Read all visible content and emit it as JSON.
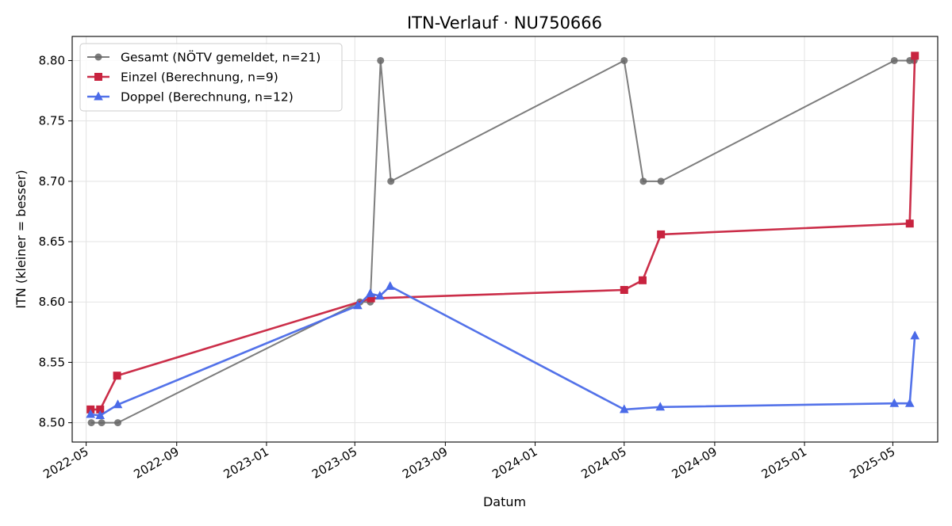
{
  "chart_data": {
    "type": "line",
    "title": "ITN-Verlauf · NU750666",
    "xlabel": "Datum",
    "ylabel": "ITN  (kleiner = besser)",
    "x_type": "date",
    "xlim": [
      "2022-04-12",
      "2025-07-01"
    ],
    "ylim": [
      8.484,
      8.82
    ],
    "x_ticks": [
      "2022-05-01",
      "2022-09-01",
      "2023-01-01",
      "2023-05-01",
      "2023-09-01",
      "2024-01-01",
      "2024-05-01",
      "2024-09-01",
      "2025-01-01",
      "2025-05-01"
    ],
    "x_tick_labels": [
      "2022-05",
      "2022-09",
      "2023-01",
      "2023-05",
      "2023-09",
      "2024-01",
      "2024-05",
      "2024-09",
      "2025-01",
      "2025-05"
    ],
    "y_ticks": [
      8.5,
      8.55,
      8.6,
      8.65,
      8.7,
      8.75,
      8.8
    ],
    "y_tick_labels": [
      "8.50",
      "8.55",
      "8.60",
      "8.65",
      "8.70",
      "8.75",
      "8.80"
    ],
    "grid": true,
    "legend_position": "top-left",
    "series": [
      {
        "name": "Gesamt (NÖTV gemeldet, n=21)",
        "color": "#666666",
        "marker": "circle",
        "points": [
          {
            "x": "2022-05-08",
            "y": 8.5
          },
          {
            "x": "2022-05-22",
            "y": 8.5
          },
          {
            "x": "2022-06-13",
            "y": 8.5
          },
          {
            "x": "2023-05-08",
            "y": 8.6
          },
          {
            "x": "2023-05-22",
            "y": 8.6
          },
          {
            "x": "2023-06-05",
            "y": 8.8
          },
          {
            "x": "2023-06-19",
            "y": 8.7
          },
          {
            "x": "2024-05-01",
            "y": 8.8
          },
          {
            "x": "2024-05-27",
            "y": 8.7
          },
          {
            "x": "2024-06-20",
            "y": 8.7
          },
          {
            "x": "2025-05-03",
            "y": 8.8
          },
          {
            "x": "2025-05-24",
            "y": 8.8
          },
          {
            "x": "2025-05-30",
            "y": 8.8
          }
        ]
      },
      {
        "name": "Einzel (Berechnung, n=9)",
        "color": "#c8233f",
        "marker": "square",
        "points": [
          {
            "x": "2022-05-07",
            "y": 8.511
          },
          {
            "x": "2022-05-20",
            "y": 8.511
          },
          {
            "x": "2022-06-12",
            "y": 8.539
          },
          {
            "x": "2023-05-23",
            "y": 8.603
          },
          {
            "x": "2024-05-01",
            "y": 8.61
          },
          {
            "x": "2024-05-26",
            "y": 8.618
          },
          {
            "x": "2024-06-20",
            "y": 8.656
          },
          {
            "x": "2025-05-24",
            "y": 8.665
          },
          {
            "x": "2025-05-31",
            "y": 8.804
          }
        ]
      },
      {
        "name": "Doppel (Berechnung, n=12)",
        "color": "#4a6ae8",
        "marker": "triangle",
        "points": [
          {
            "x": "2022-05-07",
            "y": 8.507
          },
          {
            "x": "2022-05-20",
            "y": 8.506
          },
          {
            "x": "2022-06-13",
            "y": 8.515
          },
          {
            "x": "2023-05-05",
            "y": 8.597
          },
          {
            "x": "2023-05-22",
            "y": 8.607
          },
          {
            "x": "2023-06-04",
            "y": 8.605
          },
          {
            "x": "2023-06-18",
            "y": 8.613
          },
          {
            "x": "2024-05-01",
            "y": 8.511
          },
          {
            "x": "2024-06-19",
            "y": 8.513
          },
          {
            "x": "2025-05-03",
            "y": 8.516
          },
          {
            "x": "2025-05-24",
            "y": 8.516
          },
          {
            "x": "2025-05-31",
            "y": 8.572
          }
        ]
      }
    ]
  }
}
